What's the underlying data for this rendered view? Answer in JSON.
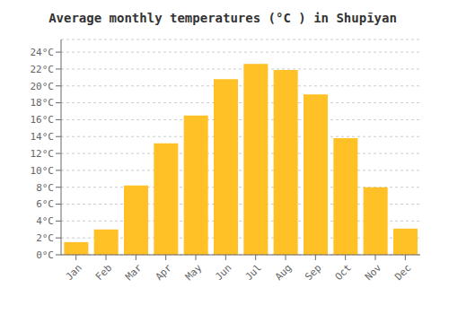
{
  "chart_data": {
    "type": "bar",
    "title": "Average monthly temperatures (°C ) in Shupīyan",
    "categories": [
      "Jan",
      "Feb",
      "Mar",
      "Apr",
      "May",
      "Jun",
      "Jul",
      "Aug",
      "Sep",
      "Oct",
      "Nov",
      "Dec"
    ],
    "values": [
      1.5,
      3.0,
      8.2,
      13.2,
      16.5,
      20.8,
      22.6,
      21.9,
      19.0,
      13.8,
      8.0,
      3.1
    ],
    "color": "#FFC125",
    "ylim": [
      0,
      25.5
    ],
    "yticks": [
      {
        "value": 0,
        "label": "0°C"
      },
      {
        "value": 2,
        "label": "2°C"
      },
      {
        "value": 4,
        "label": "4°C"
      },
      {
        "value": 6,
        "label": "6°C"
      },
      {
        "value": 8,
        "label": "8°C"
      },
      {
        "value": 10,
        "label": "10°C"
      },
      {
        "value": 12,
        "label": "12°C"
      },
      {
        "value": 14,
        "label": "14°C"
      },
      {
        "value": 16,
        "label": "16°C"
      },
      {
        "value": 18,
        "label": "18°C"
      },
      {
        "value": 20,
        "label": "20°C"
      },
      {
        "value": 22,
        "label": "22°C"
      },
      {
        "value": 24,
        "label": "24°C"
      }
    ],
    "grid": true
  }
}
